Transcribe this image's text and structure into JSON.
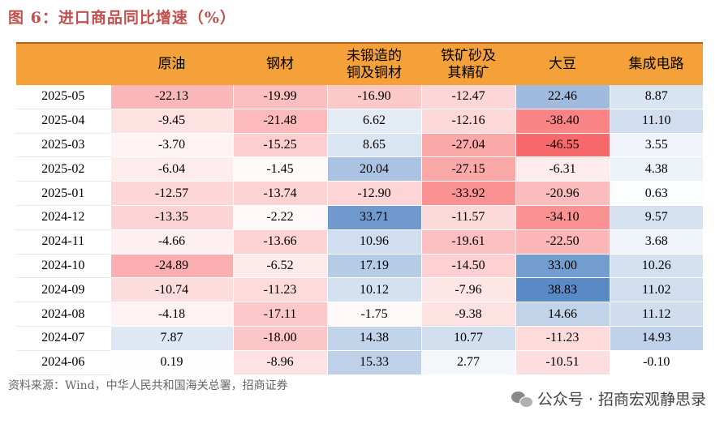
{
  "title": "图 6：进口商品同比增速（%）",
  "table": {
    "headers": [
      "",
      "原油",
      "钢材",
      "未锻造的\n铜及铜材",
      "铁矿砂及\n其精矿",
      "大豆",
      "集成电路"
    ],
    "rows": [
      {
        "date": "2025-05",
        "values": [
          -22.13,
          -19.99,
          -16.9,
          -12.47,
          22.46,
          8.87
        ],
        "labels": [
          "-22.13",
          "-19.99",
          "-16.90",
          "-12.47",
          "22.46",
          "8.87"
        ]
      },
      {
        "date": "2025-04",
        "values": [
          -9.45,
          -21.48,
          6.62,
          -12.16,
          -38.4,
          11.1
        ],
        "labels": [
          "-9.45",
          "-21.48",
          "6.62",
          "-12.16",
          "-38.40",
          "11.10"
        ]
      },
      {
        "date": "2025-03",
        "values": [
          -3.7,
          -15.25,
          8.65,
          -27.04,
          -46.55,
          3.55
        ],
        "labels": [
          "-3.70",
          "-15.25",
          "8.65",
          "-27.04",
          "-46.55",
          "3.55"
        ]
      },
      {
        "date": "2025-02",
        "values": [
          -6.04,
          -1.45,
          20.04,
          -27.15,
          -6.31,
          4.38
        ],
        "labels": [
          "-6.04",
          "-1.45",
          "20.04",
          "-27.15",
          "-6.31",
          "4.38"
        ]
      },
      {
        "date": "2025-01",
        "values": [
          -12.57,
          -13.74,
          -12.9,
          -33.92,
          -20.96,
          0.63
        ],
        "labels": [
          "-12.57",
          "-13.74",
          "-12.90",
          "-33.92",
          "-20.96",
          "0.63"
        ]
      },
      {
        "date": "2024-12",
        "values": [
          -13.35,
          -2.22,
          33.71,
          -11.57,
          -34.1,
          9.57
        ],
        "labels": [
          "-13.35",
          "-2.22",
          "33.71",
          "-11.57",
          "-34.10",
          "9.57"
        ]
      },
      {
        "date": "2024-11",
        "values": [
          -4.66,
          -13.66,
          10.96,
          -19.61,
          -22.5,
          3.68
        ],
        "labels": [
          "-4.66",
          "-13.66",
          "10.96",
          "-19.61",
          "-22.50",
          "3.68"
        ]
      },
      {
        "date": "2024-10",
        "values": [
          -24.89,
          -6.52,
          17.19,
          -14.5,
          33.0,
          10.26
        ],
        "labels": [
          "-24.89",
          "-6.52",
          "17.19",
          "-14.50",
          "33.00",
          "10.26"
        ]
      },
      {
        "date": "2024-09",
        "values": [
          -10.74,
          -11.23,
          10.12,
          -7.96,
          38.83,
          11.02
        ],
        "labels": [
          "-10.74",
          "-11.23",
          "10.12",
          "-7.96",
          "38.83",
          "11.02"
        ]
      },
      {
        "date": "2024-08",
        "values": [
          -4.18,
          -17.11,
          -1.75,
          -9.38,
          14.66,
          11.12
        ],
        "labels": [
          "-4.18",
          "-17.11",
          "-1.75",
          "-9.38",
          "14.66",
          "11.12"
        ]
      },
      {
        "date": "2024-07",
        "values": [
          7.87,
          -18.0,
          14.38,
          10.77,
          -11.23,
          14.93
        ],
        "labels": [
          "7.87",
          "-18.00",
          "14.38",
          "10.77",
          "-11.23",
          "14.93"
        ]
      },
      {
        "date": "2024-06",
        "values": [
          0.19,
          -8.96,
          15.33,
          2.77,
          -10.51,
          -0.1
        ],
        "labels": [
          "0.19",
          "-8.96",
          "15.33",
          "2.77",
          "-10.51",
          "-0.10"
        ]
      }
    ]
  },
  "colors": {
    "header_bg": "#f5a13a",
    "negative_max": "#f8696b",
    "positive_max": "#5a8ac6",
    "neutral": "#ffffff",
    "title": "#c0504d"
  },
  "source": "资料来源：Wind，中华人民共和国海关总署，招商证券",
  "watermark": {
    "icon": "wechat-icon",
    "text": "公众号 · 招商宏观静思录"
  }
}
